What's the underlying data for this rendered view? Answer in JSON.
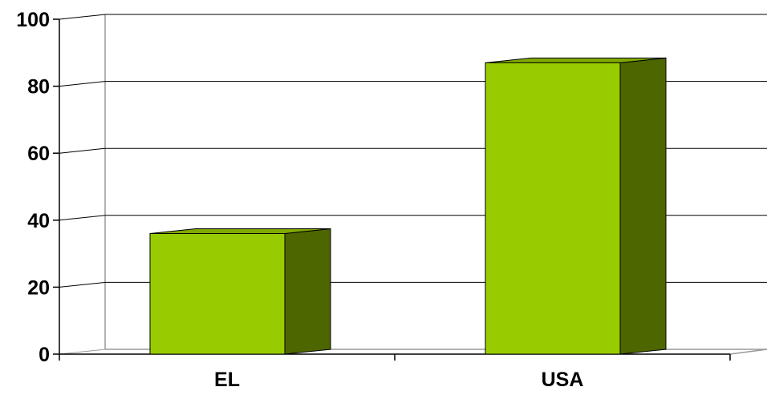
{
  "chart_data": {
    "type": "bar",
    "style": "3d",
    "categories": [
      "EL",
      "USA"
    ],
    "values": [
      36,
      87
    ],
    "ylim": [
      0,
      100
    ],
    "yticks": [
      0,
      20,
      40,
      60,
      80,
      100
    ],
    "ytick_labels": [
      "0",
      "20",
      "40",
      "60",
      "80",
      "100"
    ],
    "title": "",
    "xlabel": "",
    "ylabel": "",
    "grid": true,
    "legend": "none",
    "colors": {
      "bar_front": "#99cc00",
      "bar_side": "#4d6600",
      "bar_top": "#80aa00",
      "grid": "#000000",
      "back_wall_edge": "#999999"
    }
  }
}
